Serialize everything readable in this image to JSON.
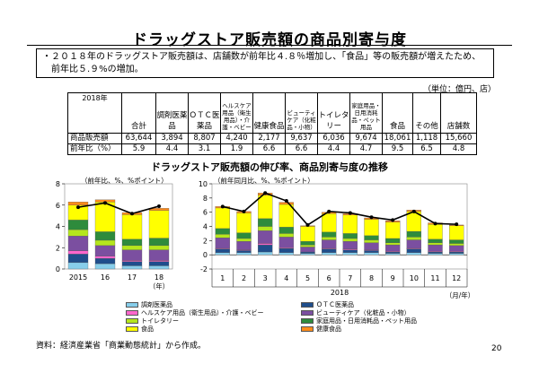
{
  "title": "ドラッグストア販売額の商品別寄与度",
  "summary": {
    "line1": "・２０１８年のドラッグストア販売額は、店舗数が前年比４.８％増加し、「食品」等の販売額が増えたため、",
    "line2": "前年比５.９%の増加。"
  },
  "unit_note": "（単位：億円、店）",
  "table": {
    "corner": "2018年",
    "headers": [
      "合計",
      "調剤医薬品",
      "ＯＴＣ医薬品",
      "ヘルスケア用品（衛生用品）・介護・ベビー",
      "健康食品",
      "ビューティケア（化粧品・小物）",
      "トイレタリー",
      "家庭用品・日用消耗品・ペット用品",
      "食品",
      "その他",
      "店舗数"
    ],
    "rows": [
      {
        "label": "商品販売額",
        "values": [
          "63,644",
          "3,894",
          "8,807",
          "4,240",
          "2,177",
          "9,637",
          "6,036",
          "9,674",
          "18,061",
          "1,118",
          "15,660"
        ]
      },
      {
        "label": "前年比（%）",
        "values": [
          "5.9",
          "4.4",
          "3.1",
          "1.9",
          "6.6",
          "6.6",
          "4.4",
          "4.7",
          "9.5",
          "6.5",
          "4.8"
        ]
      }
    ]
  },
  "chart_subtitle": "ドラッグストア販売額の伸び率、商品別寄与度の推移",
  "colors": {
    "dispensing": "#87ceeb",
    "otc": "#1f4e8c",
    "healthcare": "#ff66cc",
    "beauty": "#7b4fa0",
    "toiletry": "#b5e61d",
    "household": "#2e8b3c",
    "food": "#ffff00",
    "health_food": "#ff8c1a",
    "line": "#000000"
  },
  "legend": [
    {
      "key": "dispensing",
      "label": "調剤医薬品"
    },
    {
      "key": "otc",
      "label": "ＯＴＣ医薬品"
    },
    {
      "key": "healthcare",
      "label": "ヘルスケア用品（衛生用品）・介護・ベビー"
    },
    {
      "key": "beauty",
      "label": "ビューティケア（化粧品・小物）"
    },
    {
      "key": "toiletry",
      "label": "トイレタリー"
    },
    {
      "key": "household",
      "label": "家庭用品・日用消耗品・ペット用品"
    },
    {
      "key": "food",
      "label": "食品"
    },
    {
      "key": "health_food",
      "label": "健康食品"
    }
  ],
  "source": "資料：経済産業省「商業動態統計」から作成。",
  "page_number": "20",
  "chart_data": [
    {
      "type": "bar",
      "stacked": true,
      "categories": [
        "2015",
        "16",
        "17",
        "18"
      ],
      "x_suffix": "（年）",
      "ylabel": "（前年比、%、%ポイント）",
      "ylim": [
        0,
        8
      ],
      "yticks": [
        0,
        2,
        4,
        6,
        8
      ],
      "series": [
        {
          "key": "dispensing",
          "values": [
            0.6,
            0.5,
            0.3,
            0.3
          ]
        },
        {
          "key": "otc",
          "values": [
            0.8,
            0.5,
            0.4,
            0.4
          ]
        },
        {
          "key": "healthcare",
          "values": [
            0.3,
            0.2,
            0.1,
            0.1
          ]
        },
        {
          "key": "beauty",
          "values": [
            1.4,
            1.0,
            1.0,
            1.0
          ]
        },
        {
          "key": "toiletry",
          "values": [
            0.6,
            0.5,
            0.4,
            0.4
          ]
        },
        {
          "key": "household",
          "values": [
            0.9,
            0.8,
            0.6,
            0.7
          ]
        },
        {
          "key": "food",
          "values": [
            1.4,
            2.8,
            2.3,
            2.6
          ]
        },
        {
          "key": "health_food",
          "values": [
            0.3,
            0.2,
            0.2,
            0.2
          ]
        }
      ],
      "line": [
        5.8,
        6.2,
        5.2,
        5.9
      ]
    },
    {
      "type": "bar",
      "stacked": true,
      "categories": [
        "1",
        "2",
        "3",
        "4",
        "5",
        "6",
        "7",
        "8",
        "9",
        "10",
        "11",
        "12"
      ],
      "x_group_label": "2018",
      "x_suffix": "（月/年）",
      "ylabel": "（前年同月比、%、%ポイント）",
      "ylim": [
        -2,
        10
      ],
      "yticks": [
        -2,
        0,
        2,
        4,
        6,
        8,
        10
      ],
      "series": [
        {
          "key": "dispensing",
          "values": [
            0.3,
            0.3,
            0.4,
            0.3,
            0.2,
            0.3,
            0.3,
            0.3,
            0.2,
            0.3,
            0.2,
            0.2
          ]
        },
        {
          "key": "otc",
          "values": [
            0.5,
            0.3,
            1.0,
            0.6,
            0.2,
            0.5,
            0.4,
            0.3,
            0.2,
            0.5,
            0.2,
            0.2
          ]
        },
        {
          "key": "healthcare",
          "values": [
            0.1,
            0.1,
            0.2,
            0.1,
            0.0,
            0.1,
            0.1,
            0.1,
            0.1,
            0.1,
            0.1,
            0.1
          ]
        },
        {
          "key": "beauty",
          "values": [
            1.5,
            1.2,
            1.8,
            1.5,
            0.7,
            1.2,
            1.1,
            1.0,
            0.9,
            1.2,
            0.9,
            0.8
          ]
        },
        {
          "key": "toiletry",
          "values": [
            0.5,
            0.4,
            0.6,
            0.5,
            0.3,
            0.4,
            0.4,
            0.4,
            0.3,
            0.4,
            0.3,
            0.3
          ]
        },
        {
          "key": "household",
          "values": [
            0.8,
            0.8,
            1.1,
            0.9,
            0.5,
            0.7,
            0.7,
            0.6,
            0.6,
            0.8,
            0.5,
            0.5
          ]
        },
        {
          "key": "food",
          "values": [
            2.9,
            2.8,
            3.3,
            3.2,
            2.1,
            2.6,
            2.6,
            2.3,
            2.3,
            2.8,
            2.1,
            2.0
          ]
        },
        {
          "key": "health_food",
          "values": [
            0.2,
            0.2,
            0.3,
            0.3,
            0.1,
            0.2,
            0.2,
            0.2,
            0.2,
            0.2,
            0.2,
            0.1
          ]
        }
      ],
      "line": [
        6.8,
        6.1,
        8.7,
        7.6,
        4.2,
        6.1,
        5.9,
        5.3,
        4.9,
        6.1,
        4.4,
        4.3
      ]
    }
  ]
}
